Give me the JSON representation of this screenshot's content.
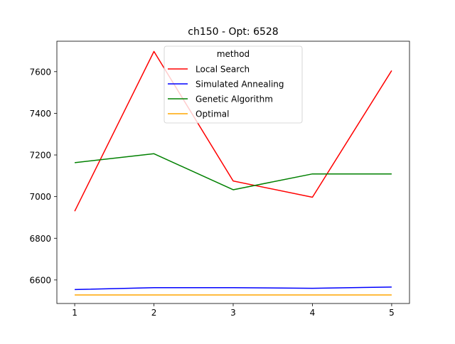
{
  "chart_data": {
    "type": "line",
    "title": "ch150 - Opt: 6528",
    "xlabel": "",
    "ylabel": "",
    "x": [
      1,
      2,
      3,
      4,
      5
    ],
    "xlim": [
      0.775,
      5.225
    ],
    "ylim": [
      6487,
      7746
    ],
    "xticks": [
      1,
      2,
      3,
      4,
      5
    ],
    "yticks": [
      6600,
      6800,
      7000,
      7200,
      7400,
      7600
    ],
    "grid": false,
    "legend": {
      "title": "method",
      "placement": "top-center"
    },
    "series": [
      {
        "name": "Local Search",
        "color": "#ff0000",
        "values": [
          6930,
          7697,
          7075,
          6997,
          7605
        ]
      },
      {
        "name": "Simulated Annealing",
        "color": "#0000ff",
        "values": [
          6554,
          6563,
          6563,
          6560,
          6566
        ]
      },
      {
        "name": "Genetic Algorithm",
        "color": "#008000",
        "values": [
          7163,
          7206,
          7033,
          7109,
          7109
        ]
      },
      {
        "name": "Optimal",
        "color": "#ffa500",
        "values": [
          6528,
          6528,
          6528,
          6528,
          6528
        ]
      }
    ]
  }
}
